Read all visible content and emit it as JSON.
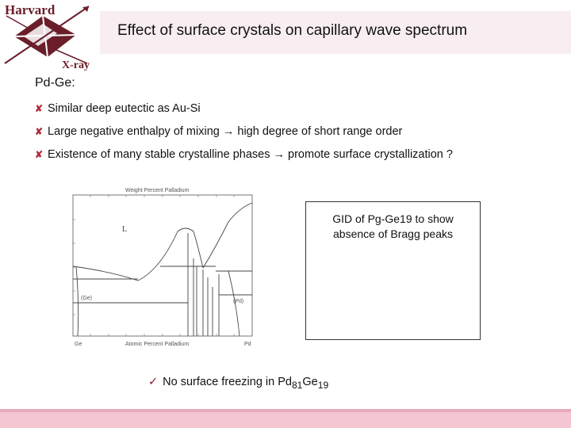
{
  "logo": {
    "top_text": "Harvard",
    "bottom_text": "X-ray"
  },
  "title": "Effect of surface crystals on capillary wave spectrum",
  "heading": "Pd-Ge:",
  "bullets": [
    "Similar deep eutectic as Au-Si",
    "Large negative enthalpy of mixing → high degree of short range order",
    "Existence of many stable crystalline phases → promote surface crystallization ?"
  ],
  "bullet_icon": "x-mark-icon",
  "diagram": {
    "top_axis": "Weight Percent Palladium",
    "bottom_axis": "Atomic Percent Palladium",
    "left_element": "Ge",
    "right_element": "Pd",
    "liquid_label": "L",
    "ge_phase": "(Ge)",
    "pd_phase": "(Pd)"
  },
  "gid_box": {
    "text": "GID of Pg-Ge19 to show\nabsence of Bragg peaks"
  },
  "note": {
    "check": "✓",
    "prefix": "No surface freezing in Pd",
    "sub1": "81",
    "mid": "Ge",
    "sub2": "19"
  },
  "colors": {
    "accent": "#b22c3c",
    "title_bg": "#f8eef1",
    "bottom_bar": "#f3c6d1"
  }
}
